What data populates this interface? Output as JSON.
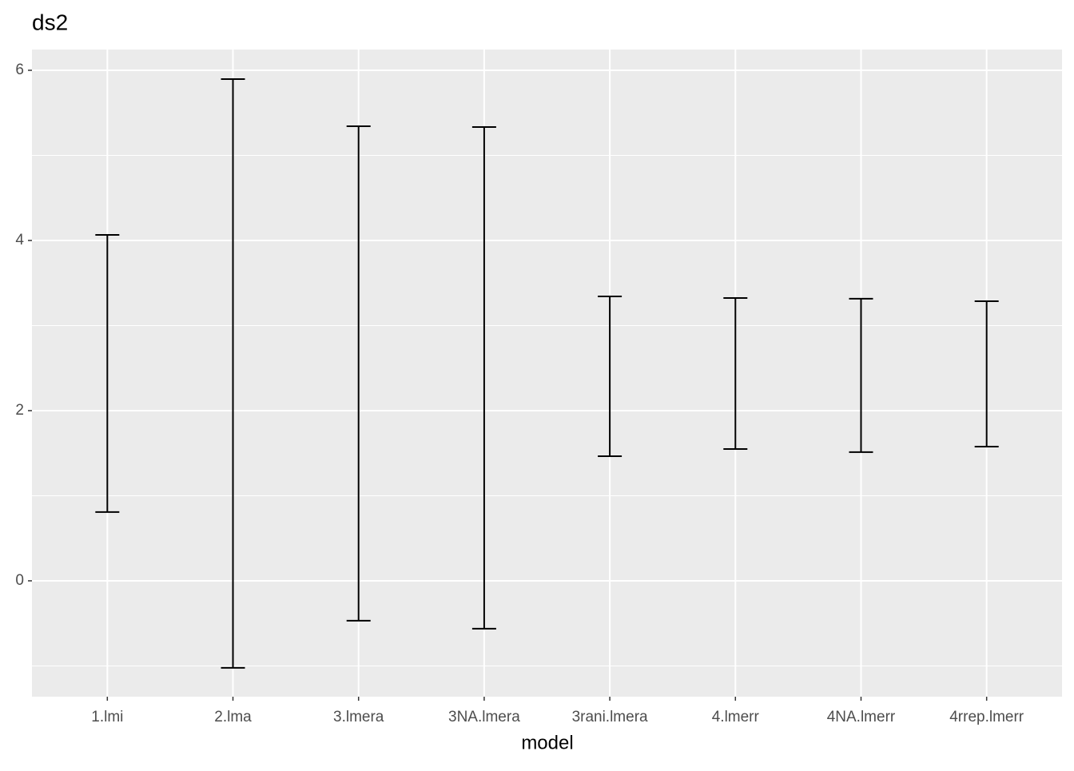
{
  "chart_data": {
    "type": "errorbar",
    "title": "ds2",
    "x_label": "model",
    "categories": [
      "1.lmi",
      "2.lma",
      "3.lmera",
      "3NA.lmera",
      "3rani.lmera",
      "4.lmerr",
      "4NA.lmerr",
      "4rrep.lmerr"
    ],
    "lower": [
      0.808,
      -1.023,
      -0.469,
      -0.563,
      1.465,
      1.549,
      1.512,
      1.577
    ],
    "upper": [
      4.066,
      5.897,
      5.343,
      5.333,
      3.343,
      3.324,
      3.315,
      3.286
    ],
    "color": "#000000",
    "ylim": [
      -1.362,
      6.244
    ],
    "yticks": [
      0,
      2,
      4,
      6
    ],
    "yminor": [
      -1,
      1,
      3,
      5
    ],
    "grid": true
  }
}
